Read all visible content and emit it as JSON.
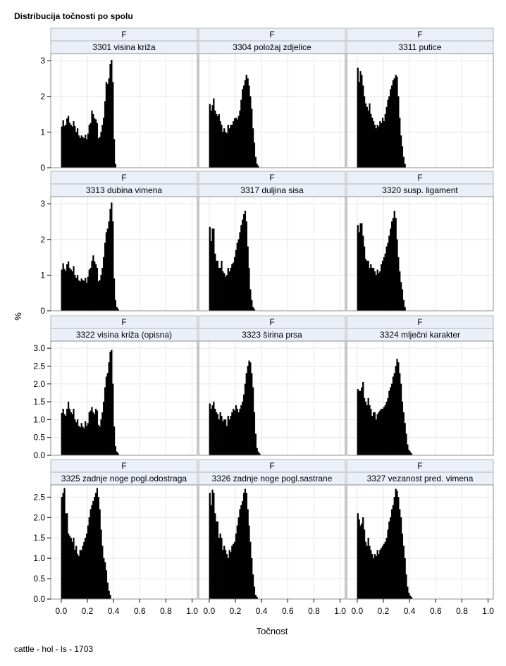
{
  "title": "Distribucija točnosti po spolu",
  "footnote": "cattle - hol - ls - 1703",
  "chart_data": {
    "type": "bar",
    "title": "Distribucija točnosti po spolu",
    "xlabel": "Točnost",
    "ylabel": "%",
    "xlim": [
      -0.08,
      1.04
    ],
    "x_ticks": [
      "0.0",
      "0.2",
      "0.4",
      "0.6",
      "0.8",
      "1.0"
    ],
    "x_tick_values": [
      0,
      0.2,
      0.4,
      0.6,
      0.8,
      1.0
    ],
    "bin_width": 0.01,
    "bins_start": 0.0,
    "grid": true,
    "legend": "none",
    "bar_color": "#000000",
    "rows": [
      {
        "ylim": [
          0,
          3.2
        ],
        "y_ticks": [
          "0",
          "1",
          "2",
          "3"
        ],
        "y_tick_values": [
          0,
          1,
          2,
          3
        ]
      },
      {
        "ylim": [
          0,
          3.2
        ],
        "y_ticks": [
          "0",
          "1",
          "2",
          "3"
        ],
        "y_tick_values": [
          0,
          1,
          2,
          3
        ]
      },
      {
        "ylim": [
          0,
          3.2
        ],
        "y_ticks": [
          "0.0",
          "0.5",
          "1.0",
          "1.5",
          "2.0",
          "2.5",
          "3.0"
        ],
        "y_tick_values": [
          0,
          0.5,
          1,
          1.5,
          2,
          2.5,
          3
        ]
      },
      {
        "ylim": [
          0,
          2.8
        ],
        "y_ticks": [
          "0.0",
          "0.5",
          "1.0",
          "1.5",
          "2.0",
          "2.5"
        ],
        "y_tick_values": [
          0,
          0.5,
          1,
          1.5,
          2,
          2.5
        ]
      }
    ],
    "panels": [
      {
        "group": "F",
        "name": "3301 visina križa",
        "values": [
          1.15,
          1.33,
          1.17,
          1.2,
          1.38,
          1.45,
          1.26,
          1.2,
          1.15,
          1.3,
          1.16,
          1.0,
          1.1,
          0.9,
          0.83,
          0.9,
          0.86,
          0.82,
          0.92,
          0.8,
          0.95,
          1.2,
          1.25,
          1.6,
          1.5,
          1.38,
          1.35,
          1.25,
          0.82,
          0.86,
          1.0,
          1.2,
          1.4,
          1.86,
          2.4,
          2.35,
          2.5,
          2.9,
          3.02,
          2.4,
          0.8,
          0.1
        ]
      },
      {
        "group": "F",
        "name": "3304 položaj zdjelice",
        "values": [
          1.78,
          1.6,
          1.75,
          1.94,
          1.6,
          1.5,
          1.45,
          1.5,
          1.3,
          1.2,
          1.0,
          1.1,
          1.0,
          0.96,
          1.2,
          1.1,
          1.2,
          1.2,
          1.3,
          1.38,
          1.4,
          1.35,
          1.45,
          1.6,
          1.9,
          2.2,
          2.3,
          2.45,
          2.6,
          2.5,
          2.3,
          2.0,
          1.65,
          1.1,
          0.7,
          0.3,
          0.1,
          0.05
        ]
      },
      {
        "group": "F",
        "name": "3311 putice",
        "values": [
          2.8,
          2.4,
          2.7,
          2.6,
          2.3,
          2.0,
          1.8,
          1.7,
          1.6,
          1.8,
          1.5,
          1.4,
          1.3,
          1.2,
          1.1,
          1.2,
          1.15,
          1.3,
          1.25,
          1.4,
          1.3,
          1.5,
          1.7,
          1.9,
          2.0,
          2.2,
          2.3,
          2.45,
          2.5,
          2.6,
          2.55,
          2.0,
          1.4,
          0.9,
          0.6,
          0.3,
          0.1
        ]
      },
      {
        "group": "F",
        "name": "3313 dubina vimena",
        "values": [
          1.15,
          1.33,
          1.17,
          1.12,
          1.3,
          1.38,
          1.2,
          1.15,
          1.1,
          1.25,
          1.0,
          0.92,
          1.0,
          0.85,
          0.82,
          0.9,
          0.86,
          0.83,
          0.92,
          0.78,
          0.95,
          1.15,
          1.2,
          1.4,
          1.55,
          1.38,
          1.3,
          1.2,
          0.82,
          0.86,
          1.0,
          1.2,
          1.5,
          1.9,
          2.2,
          2.3,
          2.5,
          2.85,
          3.03,
          2.5,
          0.9,
          0.3,
          0.1,
          0.05
        ]
      },
      {
        "group": "F",
        "name": "3317 duljina sisa",
        "values": [
          2.35,
          1.95,
          2.3,
          2.3,
          1.6,
          1.4,
          1.4,
          1.2,
          1.2,
          1.4,
          1.1,
          1.05,
          0.95,
          1.0,
          1.2,
          1.1,
          1.2,
          1.3,
          1.35,
          1.5,
          1.7,
          1.9,
          2.0,
          2.2,
          2.4,
          2.55,
          2.7,
          2.8,
          2.5,
          1.8,
          1.2,
          0.6,
          0.3,
          0.1,
          0.05
        ]
      },
      {
        "group": "F",
        "name": "3320 susp. ligament",
        "values": [
          2.4,
          2.2,
          2.45,
          2.45,
          2.1,
          1.8,
          1.45,
          1.4,
          1.4,
          1.2,
          1.3,
          1.2,
          1.2,
          1.1,
          1.0,
          1.15,
          1.05,
          1.1,
          1.3,
          1.4,
          1.5,
          1.6,
          1.8,
          1.9,
          2.1,
          2.3,
          2.5,
          2.6,
          2.8,
          2.6,
          2.0,
          1.5,
          1.1,
          0.8,
          0.6,
          0.3,
          0.1
        ]
      },
      {
        "group": "F",
        "name": "3322 visina križa (opisna)",
        "values": [
          1.18,
          1.3,
          1.15,
          1.1,
          1.3,
          1.5,
          1.3,
          1.2,
          1.15,
          1.3,
          1.0,
          0.92,
          1.0,
          0.82,
          0.78,
          0.9,
          0.8,
          0.76,
          0.95,
          0.82,
          0.9,
          1.2,
          1.25,
          1.35,
          1.2,
          1.15,
          1.3,
          1.25,
          0.85,
          0.8,
          1.0,
          1.2,
          1.5,
          1.9,
          2.2,
          2.3,
          2.6,
          2.9,
          2.95,
          2.0,
          0.8,
          0.25,
          0.1,
          0.05
        ]
      },
      {
        "group": "F",
        "name": "3323 širina prsa",
        "values": [
          1.45,
          1.3,
          1.4,
          1.5,
          1.3,
          1.2,
          1.15,
          1.0,
          1.2,
          1.1,
          0.95,
          1.0,
          1.0,
          0.82,
          1.1,
          1.0,
          1.1,
          1.2,
          1.3,
          1.25,
          1.4,
          1.3,
          1.2,
          1.3,
          1.4,
          1.5,
          1.7,
          2.0,
          2.3,
          2.5,
          2.65,
          2.6,
          2.3,
          1.9,
          1.2,
          0.6,
          0.2,
          0.1,
          0.05
        ]
      },
      {
        "group": "F",
        "name": "3324 mlječni karakter",
        "values": [
          1.85,
          1.8,
          1.8,
          1.9,
          2.05,
          1.6,
          1.5,
          1.4,
          1.6,
          1.4,
          1.3,
          1.1,
          1.2,
          1.2,
          1.0,
          1.15,
          1.2,
          1.25,
          1.3,
          1.3,
          1.35,
          1.4,
          1.5,
          1.6,
          1.8,
          1.9,
          2.0,
          2.2,
          2.3,
          2.5,
          2.7,
          2.6,
          2.3,
          2.0,
          1.5,
          1.2,
          0.9,
          0.6,
          0.3,
          0.15,
          0.1,
          0.05
        ]
      },
      {
        "group": "F",
        "name": "3325 zadnje noge pogl.odostraga",
        "values": [
          2.5,
          2.6,
          2.72,
          2.1,
          2.1,
          1.6,
          1.55,
          1.5,
          1.4,
          1.5,
          1.2,
          1.3,
          1.1,
          1.05,
          1.2,
          1.2,
          1.3,
          1.4,
          1.5,
          1.6,
          1.8,
          2.0,
          2.2,
          2.3,
          2.4,
          2.5,
          2.6,
          2.72,
          2.5,
          2.2,
          1.7,
          1.3,
          1.0,
          0.9,
          0.7,
          0.4,
          0.2,
          0.1
        ]
      },
      {
        "group": "F",
        "name": "3326 zadnje noge pogl.sastrane",
        "values": [
          2.6,
          2.3,
          2.68,
          2.6,
          2.1,
          1.9,
          1.9,
          1.5,
          1.6,
          1.5,
          1.2,
          1.3,
          1.2,
          1.1,
          1.0,
          1.2,
          1.15,
          1.3,
          1.35,
          1.4,
          1.6,
          1.8,
          2.0,
          2.2,
          2.3,
          2.4,
          2.6,
          2.7,
          2.6,
          2.2,
          1.8,
          1.4,
          1.0,
          0.6,
          0.3,
          0.1,
          0.05
        ]
      },
      {
        "group": "F",
        "name": "3327 vezanost pred. vimena",
        "values": [
          2.1,
          1.95,
          1.8,
          1.85,
          2.0,
          1.7,
          1.4,
          1.3,
          1.5,
          1.3,
          1.2,
          1.1,
          1.0,
          1.1,
          1.05,
          1.2,
          1.1,
          1.2,
          1.25,
          1.3,
          1.35,
          1.4,
          1.5,
          1.7,
          1.9,
          2.0,
          2.2,
          2.3,
          2.5,
          2.7,
          2.65,
          2.5,
          2.2,
          2.0,
          1.6,
          1.3,
          1.0,
          0.6,
          0.3,
          0.15,
          0.08,
          0.05
        ]
      }
    ]
  }
}
